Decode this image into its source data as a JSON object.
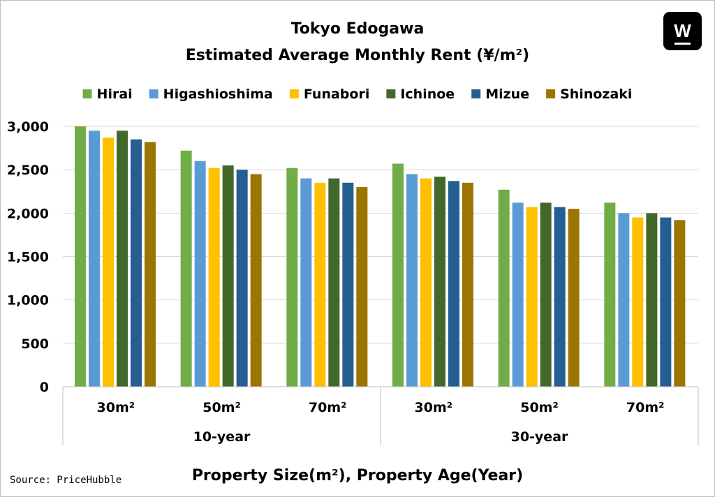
{
  "brand": {
    "logo_text": "W"
  },
  "source": "Source: PriceHubble",
  "chart_data": {
    "type": "bar",
    "title": "Tokyo Edogawa",
    "subtitle": "Estimated Average Monthly Rent (¥/m²)",
    "xlabel": "Property Size(m²), Property Age(Year)",
    "ylabel": "",
    "ylim": [
      0,
      3000
    ],
    "yticks": [
      0,
      500,
      1000,
      1500,
      2000,
      2500,
      3000
    ],
    "ytick_labels": [
      "0",
      "500",
      "1,000",
      "1,500",
      "2,000",
      "2,500",
      "3,000"
    ],
    "grid": true,
    "legend_position": "top",
    "groups": [
      {
        "label": "10-year",
        "categories": [
          "30m²",
          "50m²",
          "70m²"
        ]
      },
      {
        "label": "30-year",
        "categories": [
          "30m²",
          "50m²",
          "70m²"
        ]
      }
    ],
    "categories": [
      "30m²",
      "50m²",
      "70m²",
      "30m²",
      "50m²",
      "70m²"
    ],
    "series": [
      {
        "name": "Hirai",
        "color": "#70ad47",
        "values": [
          3000,
          2720,
          2520,
          2570,
          2270,
          2120
        ]
      },
      {
        "name": "Higashioshima",
        "color": "#5b9bd5",
        "values": [
          2950,
          2600,
          2400,
          2450,
          2120,
          2000
        ]
      },
      {
        "name": "Funabori",
        "color": "#ffc000",
        "values": [
          2870,
          2520,
          2350,
          2400,
          2070,
          1950
        ]
      },
      {
        "name": "Ichinoe",
        "color": "#43682b",
        "values": [
          2950,
          2550,
          2400,
          2420,
          2120,
          2000
        ]
      },
      {
        "name": "Mizue",
        "color": "#255e91",
        "values": [
          2850,
          2500,
          2350,
          2370,
          2070,
          1950
        ]
      },
      {
        "name": "Shinozaki",
        "color": "#9c7500",
        "values": [
          2820,
          2450,
          2300,
          2350,
          2050,
          1920
        ]
      }
    ]
  }
}
